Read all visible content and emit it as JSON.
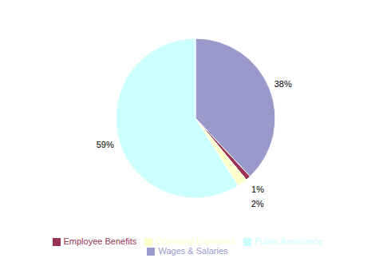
{
  "chart_data": {
    "type": "pie",
    "labels": [
      "Wages & Salaries",
      "Employee Benefits",
      "Operating Expenses",
      "Public Assistance"
    ],
    "values": [
      38,
      1,
      2,
      59
    ],
    "value_labels": [
      "38%",
      "1%",
      "2%",
      "59%"
    ],
    "colors": [
      "#9999cc",
      "#993355",
      "#ffffcc",
      "#ccffff"
    ],
    "data_labels": true,
    "legend": "bottom"
  }
}
